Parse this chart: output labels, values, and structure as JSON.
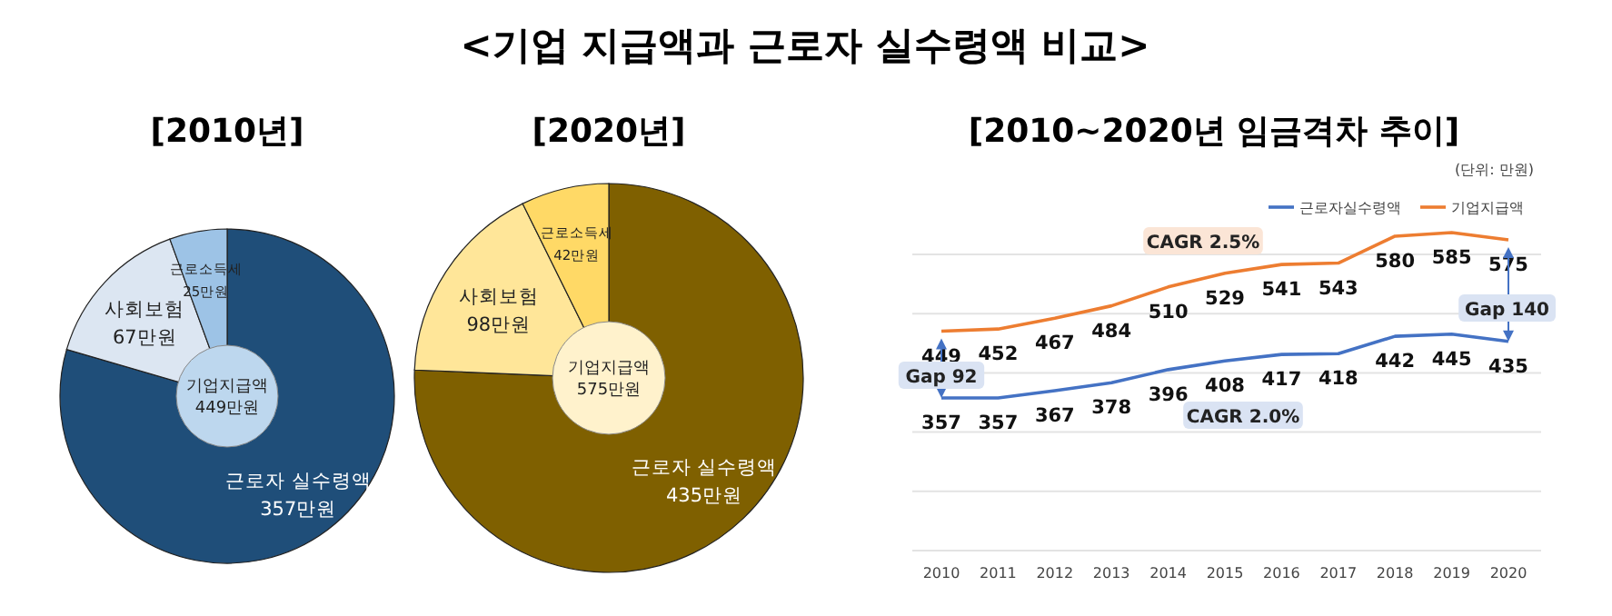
{
  "chart_data": [
    {
      "type": "other",
      "title": "<기업 지급액과 근로자 실수령액 비교>"
    },
    {
      "type": "donut",
      "title": "[2010년]",
      "categories": [
        "근로자 실수령액",
        "사회보험",
        "근로소득세"
      ],
      "values": [
        357,
        67,
        25
      ],
      "value_labels": [
        "357만원",
        "67만원",
        "25만원"
      ],
      "colors": [
        "#1f4e79",
        "#dce6f2",
        "#9dc3e6"
      ],
      "annotations": [
        "기업지급액\n449만원"
      ]
    },
    {
      "type": "donut",
      "title": "[2020년]",
      "categories": [
        "근로자 실수령액",
        "사회보험",
        "근로소득세"
      ],
      "values": [
        435,
        98,
        42
      ],
      "value_labels": [
        "435만원",
        "98만원",
        "42만원"
      ],
      "colors": [
        "#7f6000",
        "#ffe699",
        "#ffd966"
      ],
      "annotations": [
        "기업지급액\n575만원"
      ]
    },
    {
      "type": "line",
      "title": "[2010~2020년 임금격차 추이]",
      "categories": [
        "2010",
        "2011",
        "2012",
        "2013",
        "2014",
        "2015",
        "2016",
        "2017",
        "2018",
        "2019",
        "2020"
      ],
      "series": [
        {
          "name": "근로자실수령액",
          "color": "#4472c4",
          "values": [
            357,
            357,
            367,
            378,
            396,
            408,
            417,
            418,
            442,
            445,
            435
          ]
        },
        {
          "name": "기업지급액",
          "color": "#ed7d31",
          "values": [
            449,
            452,
            467,
            484,
            510,
            529,
            541,
            543,
            580,
            585,
            575
          ]
        }
      ],
      "tick_labels": "x",
      "grid": "y",
      "legend": "top right",
      "data_labels": true,
      "marker": "none",
      "annotations": [
        "(단위: 만원)",
        "CAGR 2.5%",
        "CAGR 2.0%",
        "Gap 92",
        "Gap 140"
      ]
    }
  ]
}
